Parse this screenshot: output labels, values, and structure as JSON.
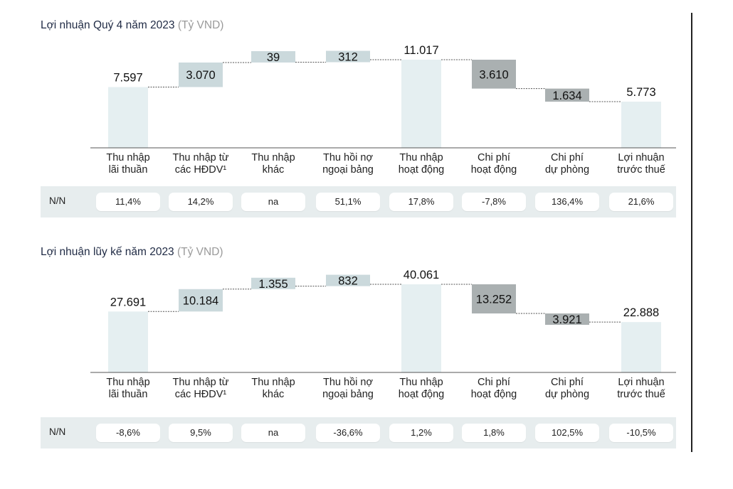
{
  "chart_data": [
    {
      "type": "bar",
      "title": "Lợi nhuận Quý 4 năm 2023",
      "unit": "(Tỷ VND)",
      "categories": [
        [
          "Thu nhập",
          "lãi thuần"
        ],
        [
          "Thu nhập từ",
          "các HĐDV¹"
        ],
        [
          "Thu nhập",
          "khác"
        ],
        [
          "Thu hồi nợ",
          "ngoại bảng"
        ],
        [
          "Thu nhập",
          "hoạt động"
        ],
        [
          "Chi phí",
          "hoạt động"
        ],
        [
          "Chi phí",
          "dự phòng"
        ],
        [
          "Lợi nhuận",
          "trước thuế"
        ]
      ],
      "values": [
        7597,
        3070,
        39,
        312,
        11017,
        -3610,
        -1634,
        5773
      ],
      "value_labels": [
        "7.597",
        "3.070",
        "39",
        "312",
        "11.017",
        "3.610",
        "1.634",
        "5.773"
      ],
      "bar_kinds": [
        "total",
        "increase",
        "increase",
        "increase",
        "total",
        "decrease",
        "decrease",
        "total"
      ],
      "yoy_label": "N/N",
      "yoy": [
        "11,4%",
        "14,2%",
        "na",
        "51,1%",
        "17,8%",
        "-7,8%",
        "136,4%",
        "21,6%"
      ]
    },
    {
      "type": "bar",
      "title": "Lợi nhuận lũy kế năm 2023",
      "unit": "(Tỷ VND)",
      "categories": [
        [
          "Thu nhập",
          "lãi thuần"
        ],
        [
          "Thu nhập từ",
          "các HĐDV¹"
        ],
        [
          "Thu nhập",
          "khác"
        ],
        [
          "Thu hồi nợ",
          "ngoại bảng"
        ],
        [
          "Thu nhập",
          "hoạt động"
        ],
        [
          "Chi phí",
          "hoạt động"
        ],
        [
          "Chi phí",
          "dự phòng"
        ],
        [
          "Lợi nhuận",
          "trước thuế"
        ]
      ],
      "values": [
        27691,
        10184,
        1355,
        832,
        40061,
        -13252,
        -3921,
        22888
      ],
      "value_labels": [
        "27.691",
        "10.184",
        "1.355",
        "832",
        "40.061",
        "13.252",
        "3.921",
        "22.888"
      ],
      "bar_kinds": [
        "total",
        "increase",
        "increase",
        "increase",
        "total",
        "decrease",
        "decrease",
        "total"
      ],
      "yoy_label": "N/N",
      "yoy": [
        "-8,6%",
        "9,5%",
        "na",
        "-36,6%",
        "1,2%",
        "1,8%",
        "102,5%",
        "-10,5%"
      ]
    }
  ],
  "colors": {
    "total": "#e5eff1",
    "increase": "#cbd9dc",
    "decrease": "#aab0b1",
    "axis": "#555555",
    "connector": "#555555",
    "row": "#e7edee"
  }
}
